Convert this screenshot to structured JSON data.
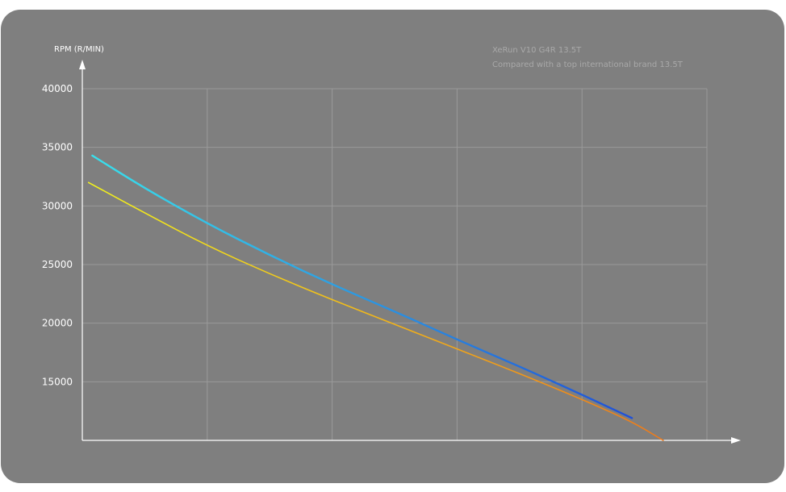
{
  "chart_data": {
    "type": "line",
    "ylabel": "RPM (R/MIN)",
    "xlabel": "",
    "ylim": [
      10000,
      40000
    ],
    "yticks": [
      15000,
      20000,
      25000,
      30000,
      35000,
      40000
    ],
    "xlim": [
      0,
      5
    ],
    "grid": true,
    "legend_position": "top-right",
    "series": [
      {
        "name": "XeRun V10 G4R 13.5T",
        "color_start": "#39e0ec",
        "color_end": "#1f50d8",
        "x": [
          0.08,
          0.5,
          1.0,
          1.5,
          2.0,
          2.5,
          3.0,
          3.5,
          4.0,
          4.4
        ],
        "y": [
          34300,
          31500,
          28500,
          25800,
          23300,
          21000,
          18600,
          16300,
          13900,
          11900
        ]
      },
      {
        "name": "Compared with a top international brand 13.5T",
        "color_start": "#f2f21c",
        "color_end": "#f07a18",
        "x": [
          0.05,
          0.5,
          1.0,
          1.5,
          2.0,
          2.5,
          3.0,
          3.5,
          4.0,
          4.4,
          4.65
        ],
        "y": [
          32000,
          29400,
          26600,
          24200,
          22000,
          19900,
          17800,
          15700,
          13500,
          11600,
          10000
        ]
      }
    ]
  }
}
